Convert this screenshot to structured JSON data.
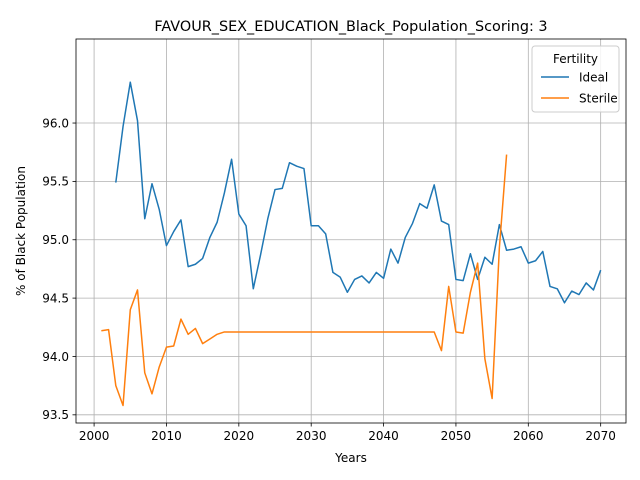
{
  "chart_data": {
    "type": "line",
    "title": "FAVOUR_SEX_EDUCATION_Black_Population_Scoring: 3",
    "xlabel": "Years",
    "ylabel": "% of Black Population",
    "xlim": [
      1997.5,
      2073.5
    ],
    "ylim": [
      93.43,
      96.72
    ],
    "xticks": [
      2000,
      2010,
      2020,
      2030,
      2040,
      2050,
      2060,
      2070
    ],
    "yticks": [
      93.5,
      94.0,
      94.5,
      95.0,
      95.5,
      96.0
    ],
    "ytick_labels": [
      "93.5",
      "94.0",
      "94.5",
      "95.0",
      "95.5",
      "96.0"
    ],
    "grid": true,
    "legend": {
      "title": "Fertility",
      "position": "top-right"
    },
    "series": [
      {
        "name": "Ideal",
        "color": "#1f77b4",
        "x": [
          2003,
          2004,
          2005,
          2006,
          2007,
          2008,
          2009,
          2010,
          2011,
          2012,
          2013,
          2014,
          2015,
          2016,
          2017,
          2018,
          2019,
          2020,
          2021,
          2022,
          2023,
          2024,
          2025,
          2026,
          2027,
          2028,
          2029,
          2030,
          2031,
          2032,
          2033,
          2034,
          2035,
          2036,
          2037,
          2038,
          2039,
          2040,
          2041,
          2042,
          2043,
          2044,
          2045,
          2046,
          2047,
          2048,
          2049,
          2050,
          2051,
          2052,
          2053,
          2054,
          2055,
          2056,
          2057,
          2058,
          2059,
          2060,
          2061,
          2062,
          2063,
          2064,
          2065,
          2066,
          2067,
          2068,
          2069,
          2070
        ],
        "y": [
          95.49,
          95.97,
          96.35,
          96.02,
          95.18,
          95.48,
          95.26,
          94.95,
          95.07,
          95.17,
          94.77,
          94.79,
          94.84,
          95.02,
          95.15,
          95.4,
          95.69,
          95.22,
          95.12,
          94.58,
          94.87,
          95.18,
          95.43,
          95.44,
          95.66,
          95.63,
          95.61,
          95.12,
          95.12,
          95.05,
          94.72,
          94.68,
          94.55,
          94.66,
          94.69,
          94.63,
          94.72,
          94.67,
          94.92,
          94.8,
          95.02,
          95.14,
          95.31,
          95.27,
          95.47,
          95.16,
          95.13,
          94.66,
          94.65,
          94.88,
          94.66,
          94.85,
          94.79,
          95.13,
          94.91,
          94.92,
          94.94,
          94.8,
          94.82,
          94.9,
          94.6,
          94.58,
          94.46,
          94.56,
          94.53,
          94.63,
          94.57,
          94.74
        ]
      },
      {
        "name": "Sterile",
        "color": "#ff7f0e",
        "x": [
          2001,
          2002,
          2003,
          2004,
          2005,
          2006,
          2007,
          2008,
          2009,
          2010,
          2011,
          2012,
          2013,
          2014,
          2015,
          2016,
          2017,
          2018,
          2019,
          2020,
          2021,
          2022,
          2023,
          2024,
          2025,
          2026,
          2027,
          2028,
          2029,
          2030,
          2031,
          2032,
          2033,
          2034,
          2035,
          2036,
          2037,
          2038,
          2039,
          2040,
          2041,
          2042,
          2043,
          2044,
          2045,
          2046,
          2047,
          2048,
          2049,
          2050,
          2051,
          2052,
          2053,
          2054,
          2055,
          2056,
          2057
        ],
        "y": [
          94.22,
          94.23,
          93.75,
          93.58,
          94.4,
          94.57,
          93.86,
          93.68,
          93.91,
          94.08,
          94.09,
          94.32,
          94.19,
          94.24,
          94.11,
          94.15,
          94.19,
          94.21,
          94.21,
          94.21,
          94.21,
          94.21,
          94.21,
          94.21,
          94.21,
          94.21,
          94.21,
          94.21,
          94.21,
          94.21,
          94.21,
          94.21,
          94.21,
          94.21,
          94.21,
          94.21,
          94.21,
          94.21,
          94.21,
          94.21,
          94.21,
          94.21,
          94.21,
          94.21,
          94.21,
          94.21,
          94.21,
          94.05,
          94.6,
          94.21,
          94.2,
          94.55,
          94.8,
          93.98,
          93.64,
          94.93,
          95.73
        ]
      }
    ]
  }
}
